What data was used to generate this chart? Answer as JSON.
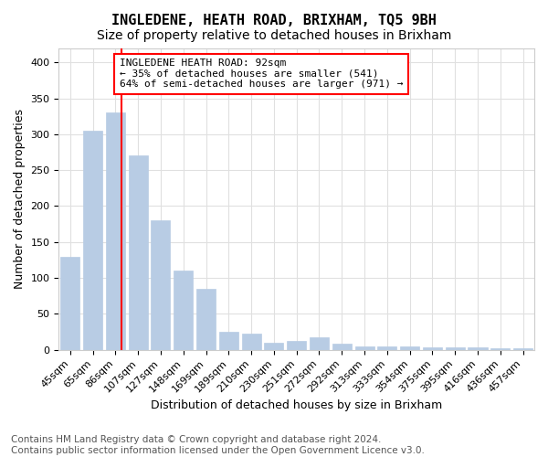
{
  "title": "INGLEDENE, HEATH ROAD, BRIXHAM, TQ5 9BH",
  "subtitle": "Size of property relative to detached houses in Brixham",
  "xlabel": "Distribution of detached houses by size in Brixham",
  "ylabel": "Number of detached properties",
  "footer_line1": "Contains HM Land Registry data © Crown copyright and database right 2024.",
  "footer_line2": "Contains public sector information licensed under the Open Government Licence v3.0.",
  "categories": [
    "45sqm",
    "65sqm",
    "86sqm",
    "107sqm",
    "127sqm",
    "148sqm",
    "169sqm",
    "189sqm",
    "210sqm",
    "230sqm",
    "251sqm",
    "272sqm",
    "292sqm",
    "313sqm",
    "333sqm",
    "354sqm",
    "375sqm",
    "395sqm",
    "416sqm",
    "436sqm",
    "457sqm"
  ],
  "values": [
    130,
    305,
    330,
    270,
    180,
    110,
    85,
    25,
    22,
    10,
    12,
    17,
    8,
    5,
    5,
    5,
    3,
    3,
    3,
    2,
    2
  ],
  "bar_color": "#b8cce4",
  "bar_edgecolor": "#b8cce4",
  "highlight_color": "#ff0000",
  "annotation_line1": "INGLEDENE HEATH ROAD: 92sqm",
  "annotation_line2": "← 35% of detached houses are smaller (541)",
  "annotation_line3": "64% of semi-detached houses are larger (971) →",
  "annotation_box_edgecolor": "#ff0000",
  "ylim": [
    0,
    420
  ],
  "yticks": [
    0,
    50,
    100,
    150,
    200,
    250,
    300,
    350,
    400
  ],
  "grid_color": "#e0e0e0",
  "background_color": "#ffffff",
  "title_fontsize": 11,
  "subtitle_fontsize": 10,
  "xlabel_fontsize": 9,
  "ylabel_fontsize": 9,
  "tick_fontsize": 8,
  "annotation_fontsize": 8,
  "footer_fontsize": 7.5
}
